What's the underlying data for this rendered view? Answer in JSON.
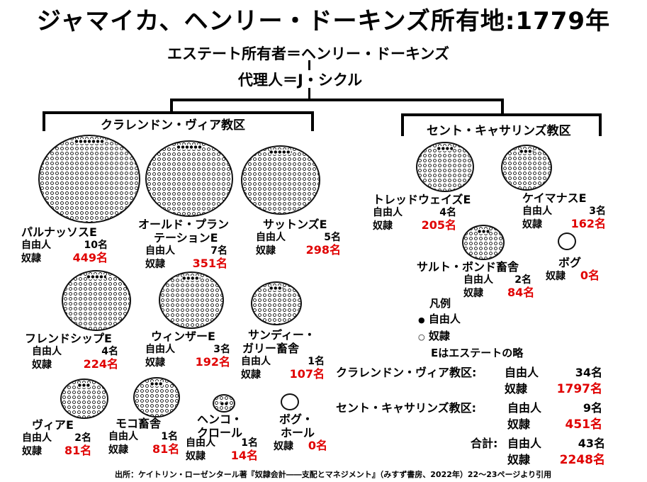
{
  "title": "ジャマイカ、ヘンリー・ドーキンズ所有地:1779年",
  "owner_line": "エステート所有者＝ヘンリー・ドーキンズ",
  "agent_line": "代理人＝J・シクル",
  "parishes": {
    "clarendon": "クラレンドン・ヴィア教区",
    "st_catherine": "セント・キャサリンズ教区"
  },
  "labels": {
    "free": "自由人",
    "slave": "奴隷"
  },
  "estates": [
    {
      "name": "パルナッソスE",
      "free": "10名",
      "slave": "449名"
    },
    {
      "name": "オールド・プランテーションE",
      "name1": "オールド・プラン",
      "name2": "テーションE",
      "free": "7名",
      "slave": "351名"
    },
    {
      "name": "サットンズE",
      "free": "5名",
      "slave": "298名"
    },
    {
      "name": "フレンドシップE",
      "free": "4名",
      "slave": "224名"
    },
    {
      "name": "ウィンザーE",
      "free": "3名",
      "slave": "192名"
    },
    {
      "name1": "サンディー・",
      "name2": "ガリー畜舎",
      "free": "1名",
      "slave": "107名"
    },
    {
      "name": "ヴィアE",
      "free": "2名",
      "slave": "81名"
    },
    {
      "name": "モコ畜舎",
      "free": "1名",
      "slave": "81名"
    },
    {
      "name1": "ヘンコ・",
      "name2": "クロール",
      "free": "1名",
      "slave": "14名"
    },
    {
      "name1": "ボグ・",
      "name2": "ホール",
      "slave": "0名"
    },
    {
      "name": "トレッドウェイズE",
      "free": "4名",
      "slave": "205名"
    },
    {
      "name": "ケイマナスE",
      "free": "3名",
      "slave": "162名"
    },
    {
      "name": "サルト・ボンド畜舎",
      "free": "2名",
      "slave": "84名"
    },
    {
      "name": "ボグ",
      "slave": "0名"
    }
  ],
  "legend": {
    "title": "凡例",
    "free": "自由人",
    "slave": "奴隷",
    "free_bullet": "●",
    "slave_bullet": "○",
    "note": "Eはエステートの略"
  },
  "summary": [
    {
      "label": "クラレンドン・ヴィア教区:",
      "free": "34名",
      "slave": "1797名"
    },
    {
      "label": "セント・キャサリンズ教区:",
      "free": "9名",
      "slave": "451名"
    },
    {
      "label": "合計:",
      "free": "43名",
      "slave": "2248名"
    }
  ],
  "source": "出所：ケイトリン・ローゼンタール著『奴隷会計――支配とマネジメント』（みすず書房、2022年）22〜23ページより引用"
}
